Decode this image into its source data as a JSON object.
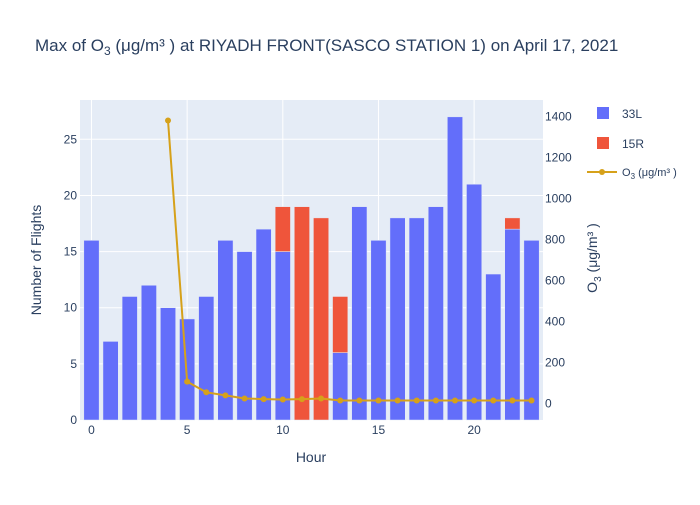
{
  "colors": {
    "series_33L": "#636efa",
    "series_15R": "#ef553b",
    "o3_line": "#d6a11a",
    "grid": "#ffffff",
    "plot_bg": "#e5ecf6",
    "text": "#2a3f5f"
  },
  "chart_data": {
    "type": "bar",
    "title": {
      "prefix": "Max of O",
      "sub": "3",
      "suffix": " (μg/m³ ) at RIYADH FRONT(SASCO STATION 1) on April 17, 2021"
    },
    "xlabel": "Hour",
    "ylabel": "Number of Flights",
    "y2label": {
      "prefix": "O",
      "sub": "3",
      "suffix": " (μg/m³ )"
    },
    "x": [
      0,
      1,
      2,
      3,
      4,
      5,
      6,
      7,
      8,
      9,
      10,
      11,
      12,
      13,
      14,
      15,
      16,
      17,
      18,
      19,
      20,
      21,
      22,
      23
    ],
    "xlim": [
      -0.6,
      23.6
    ],
    "ylim": [
      0,
      28.5
    ],
    "y2lim": [
      -80,
      1480
    ],
    "xticks": [
      0,
      5,
      10,
      15,
      20
    ],
    "yticks": [
      0,
      5,
      10,
      15,
      20,
      25
    ],
    "y2ticks": [
      0,
      200,
      400,
      600,
      800,
      1000,
      1200,
      1400
    ],
    "grid": true,
    "legend_position": "top-right",
    "series": [
      {
        "name": "33L",
        "kind": "bar",
        "color": "#636efa",
        "values": [
          16,
          7,
          11,
          12,
          10,
          9,
          11,
          16,
          15,
          17,
          15,
          0,
          0,
          6,
          19,
          16,
          18,
          18,
          19,
          27,
          21,
          13,
          17,
          16
        ]
      },
      {
        "name": "15R",
        "kind": "bar",
        "color": "#ef553b",
        "values": [
          0,
          0,
          0,
          0,
          0,
          0,
          0,
          0,
          0,
          0,
          4,
          19,
          18,
          5,
          0,
          0,
          0,
          0,
          0,
          0,
          0,
          0,
          1,
          0
        ]
      }
    ],
    "line_series": {
      "name": {
        "prefix": "O",
        "sub": "3",
        "suffix": " (μg/m³ )"
      },
      "axis": "y2",
      "color": "#d6a11a",
      "x": [
        4,
        5,
        6,
        7,
        8,
        9,
        10,
        11,
        12,
        13,
        14,
        15,
        16,
        17,
        18,
        19,
        20,
        21,
        22,
        23
      ],
      "values": [
        1380,
        107,
        55,
        40,
        25,
        22,
        20,
        22,
        25,
        15,
        15,
        15,
        15,
        15,
        15,
        15,
        15,
        15,
        15,
        15
      ]
    }
  }
}
